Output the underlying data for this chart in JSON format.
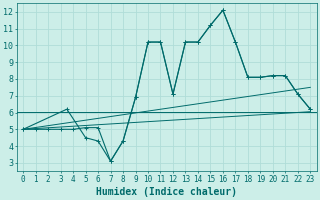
{
  "xlabel": "Humidex (Indice chaleur)",
  "bg_color": "#cceee8",
  "grid_color": "#b0ddd8",
  "line_color": "#006b6b",
  "xlim": [
    -0.5,
    23.5
  ],
  "ylim": [
    2.5,
    12.5
  ],
  "xticks": [
    0,
    1,
    2,
    3,
    4,
    5,
    6,
    7,
    8,
    9,
    10,
    11,
    12,
    13,
    14,
    15,
    16,
    17,
    18,
    19,
    20,
    21,
    22,
    23
  ],
  "yticks": [
    3,
    4,
    5,
    6,
    7,
    8,
    9,
    10,
    11,
    12
  ],
  "curve1_x": [
    0,
    1,
    2,
    3,
    4,
    5,
    6,
    7,
    8,
    9,
    10,
    11,
    12,
    13,
    14,
    15,
    16,
    17,
    18,
    19,
    20,
    21,
    22,
    23
  ],
  "curve1_y": [
    5.0,
    5.0,
    5.0,
    5.0,
    5.0,
    5.1,
    5.1,
    3.1,
    4.3,
    6.9,
    10.2,
    10.2,
    7.1,
    10.2,
    10.2,
    11.2,
    12.1,
    10.2,
    8.1,
    8.1,
    8.2,
    8.2,
    7.1,
    6.2
  ],
  "curve2_x": [
    0,
    3.5,
    5,
    6,
    7,
    8,
    9,
    10,
    11,
    12,
    13,
    14,
    15,
    16,
    17,
    18,
    19,
    20,
    21,
    22,
    23
  ],
  "curve2_y": [
    5.0,
    6.2,
    4.5,
    4.3,
    3.1,
    4.3,
    6.9,
    10.2,
    10.2,
    7.1,
    10.2,
    10.2,
    11.2,
    12.1,
    10.2,
    8.1,
    8.1,
    8.2,
    8.2,
    7.1,
    6.2
  ],
  "line1_x": [
    0,
    23
  ],
  "line1_y": [
    5.0,
    6.05
  ],
  "line2_x": [
    0,
    23
  ],
  "line2_y": [
    5.0,
    7.5
  ],
  "hline_y": 6.05,
  "tick_fontsize": 5.5,
  "xlabel_fontsize": 7
}
